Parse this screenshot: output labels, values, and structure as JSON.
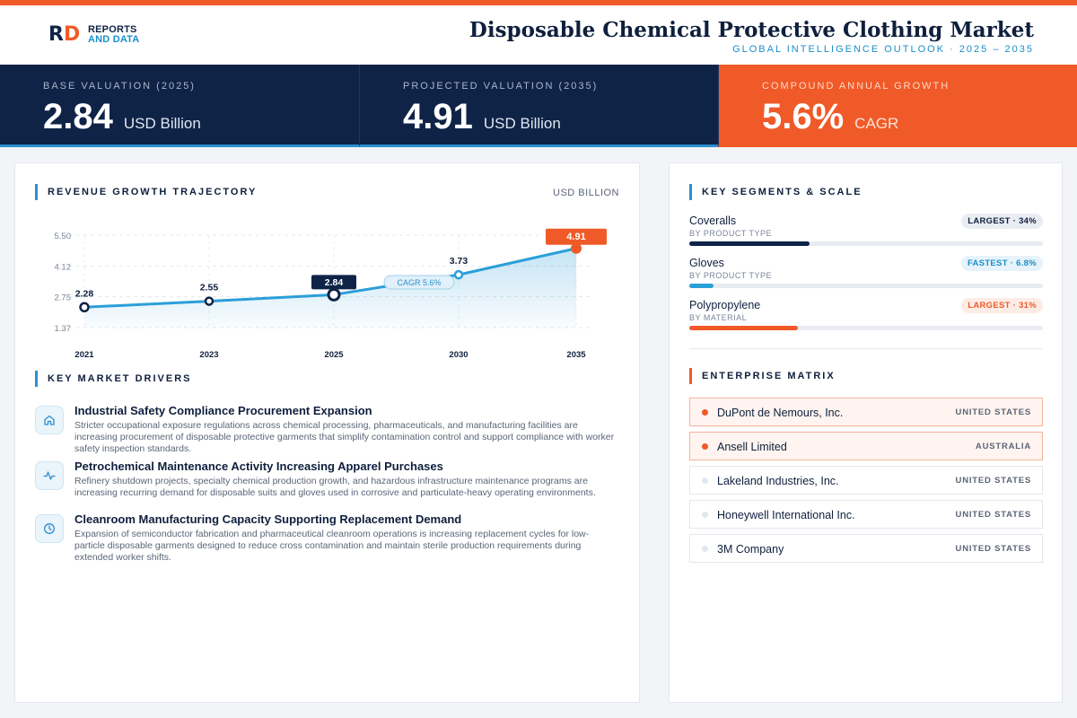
{
  "brand": {
    "logo_r": "R",
    "logo_d": "D",
    "line1": "REPORTS",
    "line2": "AND DATA"
  },
  "header": {
    "title": "Disposable Chemical Protective Clothing Market",
    "subtitle": "GLOBAL INTELLIGENCE OUTLOOK  ·  2025 – 2035"
  },
  "kpis": [
    {
      "label": "BASE VALUATION (2025)",
      "value": "2.84",
      "unit": "USD Billion"
    },
    {
      "label": "PROJECTED VALUATION (2035)",
      "value": "4.91",
      "unit": "USD Billion"
    },
    {
      "label": "COMPOUND ANNUAL GROWTH",
      "value": "5.6%",
      "unit": "CAGR"
    }
  ],
  "revenue": {
    "title": "REVENUE GROWTH TRAJECTORY",
    "unit": "USD BILLION"
  },
  "chart_data": {
    "type": "area",
    "x": [
      "2021",
      "2023",
      "2025",
      "2030",
      "2035"
    ],
    "values": [
      2.28,
      2.55,
      2.84,
      3.73,
      4.91
    ],
    "yticks": [
      "1.37",
      "2.75",
      "4.12",
      "5.50"
    ],
    "ylim": [
      1.37,
      5.5
    ],
    "annotation": "CAGR 5.6%",
    "highlight": {
      "2025": "navy",
      "2035": "orange"
    },
    "grid": true
  },
  "drivers": {
    "title": "KEY MARKET DRIVERS",
    "items": [
      {
        "icon": "home-icon",
        "title": "Industrial Safety Compliance Procurement Expansion",
        "desc": "Stricter occupational exposure regulations across chemical processing, pharmaceuticals, and manufacturing facilities are increasing procurement of disposable protective garments that simplify contamination control and support compliance with worker safety inspection standards."
      },
      {
        "icon": "activity-icon",
        "title": "Petrochemical Maintenance Activity Increasing Apparel Purchases",
        "desc": "Refinery shutdown projects, specialty chemical production growth, and hazardous infrastructure maintenance programs are increasing recurring demand for disposable suits and gloves used in corrosive and particulate-heavy operating environments."
      },
      {
        "icon": "clock-icon",
        "title": "Cleanroom Manufacturing Capacity Supporting Replacement Demand",
        "desc": "Expansion of semiconductor fabrication and pharmaceutical cleanroom operations is increasing replacement cycles for low-particle disposable garments designed to reduce cross contamination and maintain sterile production requirements during extended worker shifts."
      }
    ]
  },
  "segments": {
    "title": "KEY SEGMENTS & SCALE",
    "items": [
      {
        "name": "Coveralls",
        "sub": "BY PRODUCT TYPE",
        "badge": "LARGEST · 34%",
        "level": 0.34,
        "color": "#0f2347",
        "badge_bg": "#e9edf3",
        "badge_fg": "#0f1f3d"
      },
      {
        "name": "Gloves",
        "sub": "BY PRODUCT TYPE",
        "badge": "FASTEST · 6.8%",
        "level": 0.068,
        "color": "#2b9fd8",
        "badge_bg": "#e6f3fb",
        "badge_fg": "#1a8fc9"
      },
      {
        "name": "Polypropylene",
        "sub": "BY MATERIAL",
        "badge": "LARGEST · 31%",
        "level": 0.31,
        "color": "#f05a28",
        "badge_bg": "#fdece5",
        "badge_fg": "#f05a28"
      }
    ]
  },
  "matrix": {
    "title": "ENTERPRISE MATRIX",
    "rows": [
      {
        "name": "DuPont de Nemours, Inc.",
        "country": "UNITED STATES",
        "highlight": true
      },
      {
        "name": "Ansell Limited",
        "country": "AUSTRALIA",
        "highlight": true
      },
      {
        "name": "Lakeland Industries, Inc.",
        "country": "UNITED STATES",
        "highlight": false
      },
      {
        "name": "Honeywell International Inc.",
        "country": "UNITED STATES",
        "highlight": false
      },
      {
        "name": "3M Company",
        "country": "UNITED STATES",
        "highlight": false
      }
    ]
  },
  "colors": {
    "navy": "#0f2347",
    "orange": "#f05a28",
    "blue": "#2b9fd8"
  }
}
